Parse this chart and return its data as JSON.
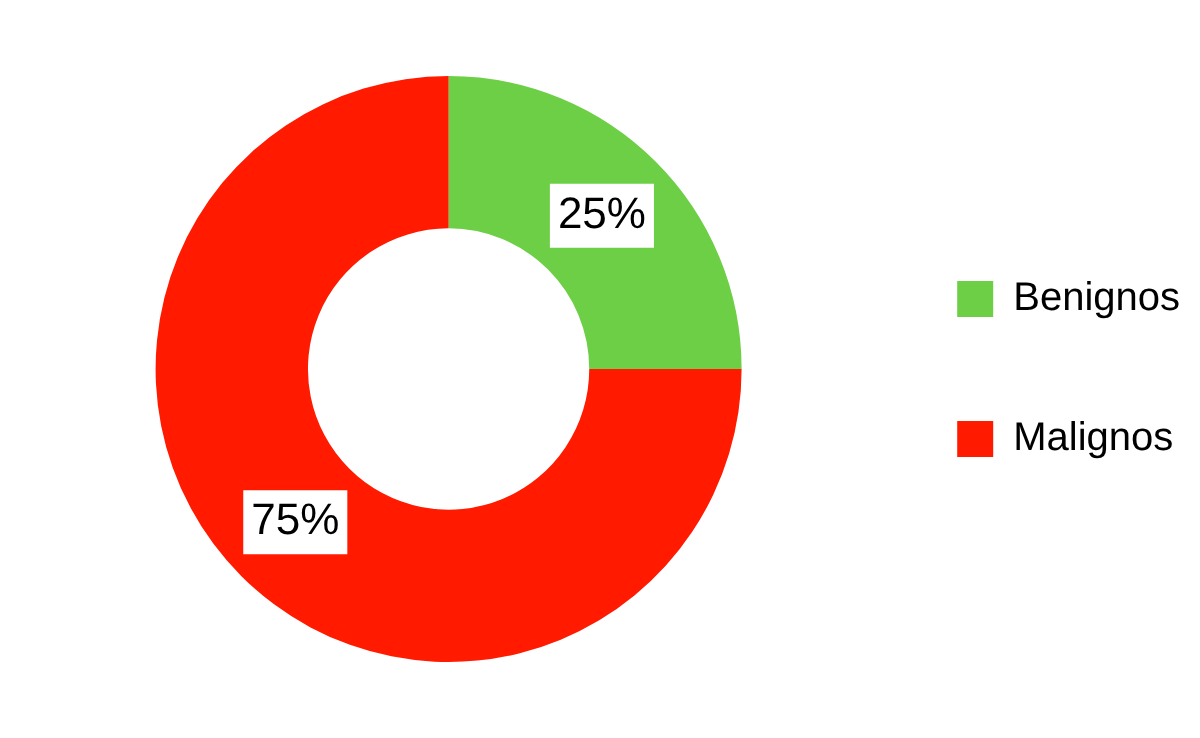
{
  "chart_data": {
    "type": "donut",
    "categories": [
      "Benignos",
      "Malignos"
    ],
    "values": [
      25,
      75
    ],
    "colors": [
      "#6dcf45",
      "#ff1a00"
    ],
    "value_labels": [
      "25%",
      "75%"
    ],
    "legend": "right"
  }
}
